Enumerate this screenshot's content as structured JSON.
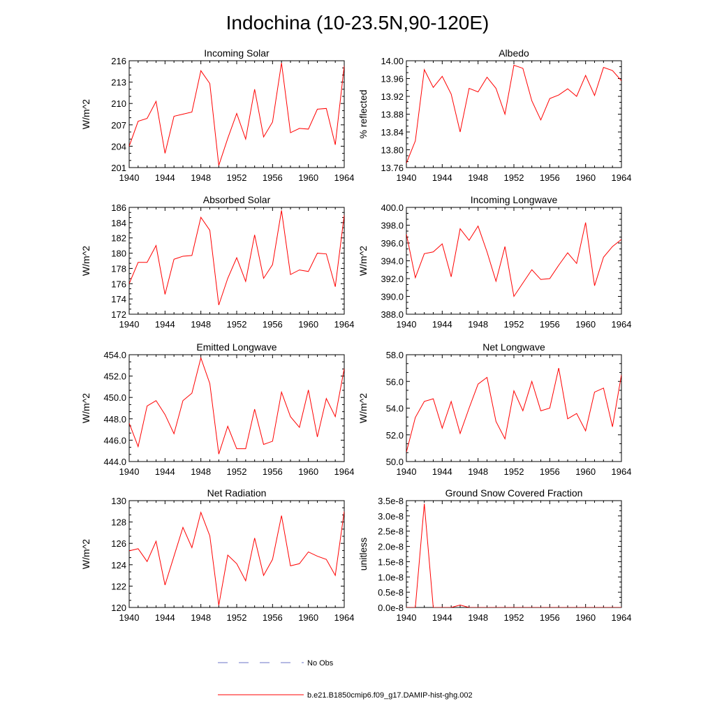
{
  "title": "Indochina (10-23.5N,90-120E)",
  "colors": {
    "model": "#ff0000",
    "obs": "#6b74c7",
    "axis": "#000000"
  },
  "legend": [
    {
      "label": "No Obs",
      "style": "dashed",
      "color": "#6b74c7"
    },
    {
      "label": "b.e21.B1850cmip6.f09_g17.DAMIP-hist-ghg.002",
      "style": "solid",
      "color": "#ff0000"
    }
  ],
  "chart_data": [
    {
      "type": "line",
      "title": "Incoming Solar",
      "ylabel": "W/m^2",
      "x": [
        1940,
        1941,
        1942,
        1943,
        1944,
        1945,
        1946,
        1947,
        1948,
        1949,
        1950,
        1951,
        1952,
        1953,
        1954,
        1955,
        1956,
        1957,
        1958,
        1959,
        1960,
        1961,
        1962,
        1963,
        1964
      ],
      "xlim": [
        1940,
        1964
      ],
      "xticks": [
        "1940",
        "1944",
        "1948",
        "1952",
        "1956",
        "1960",
        "1964"
      ],
      "ylim": [
        201,
        216
      ],
      "yticks": [
        "201",
        "204",
        "207",
        "210",
        "213",
        "216"
      ],
      "series": [
        {
          "values": [
            204.0,
            207.5,
            207.9,
            210.3,
            203.0,
            208.2,
            208.5,
            208.8,
            214.6,
            212.8,
            201.3,
            205.1,
            208.6,
            205.0,
            212.0,
            205.3,
            207.4,
            215.7,
            205.9,
            206.5,
            206.4,
            209.2,
            209.3,
            204.2,
            215.3
          ]
        }
      ]
    },
    {
      "type": "line",
      "title": "Albedo",
      "ylabel": "% reflected",
      "x": [
        1940,
        1941,
        1942,
        1943,
        1944,
        1945,
        1946,
        1947,
        1948,
        1949,
        1950,
        1951,
        1952,
        1953,
        1954,
        1955,
        1956,
        1957,
        1958,
        1959,
        1960,
        1961,
        1962,
        1963,
        1964
      ],
      "xlim": [
        1940,
        1964
      ],
      "xticks": [
        "1940",
        "1944",
        "1948",
        "1952",
        "1956",
        "1960",
        "1964"
      ],
      "ylim": [
        13.76,
        14.0
      ],
      "yticks": [
        "13.76",
        "13.80",
        "13.84",
        "13.88",
        "13.92",
        "13.96",
        "14.00"
      ],
      "series": [
        {
          "values": [
            13.77,
            13.82,
            13.98,
            13.94,
            13.965,
            13.925,
            13.84,
            13.938,
            13.93,
            13.963,
            13.938,
            13.88,
            13.99,
            13.983,
            13.91,
            13.867,
            13.915,
            13.923,
            13.937,
            13.92,
            13.967,
            13.922,
            13.985,
            13.978,
            13.955
          ]
        }
      ]
    },
    {
      "type": "line",
      "title": "Absorbed Solar",
      "ylabel": "W/m^2",
      "x": [
        1940,
        1941,
        1942,
        1943,
        1944,
        1945,
        1946,
        1947,
        1948,
        1949,
        1950,
        1951,
        1952,
        1953,
        1954,
        1955,
        1956,
        1957,
        1958,
        1959,
        1960,
        1961,
        1962,
        1963,
        1964
      ],
      "xlim": [
        1940,
        1964
      ],
      "xticks": [
        "1940",
        "1944",
        "1948",
        "1952",
        "1956",
        "1960",
        "1964"
      ],
      "ylim": [
        172,
        186
      ],
      "yticks": [
        "172",
        "174",
        "176",
        "178",
        "180",
        "182",
        "184",
        "186"
      ],
      "series": [
        {
          "values": [
            176.0,
            178.8,
            178.8,
            181.0,
            174.6,
            179.2,
            179.6,
            179.7,
            184.7,
            183.0,
            173.2,
            176.7,
            179.4,
            176.3,
            182.4,
            176.7,
            178.5,
            185.6,
            177.2,
            177.8,
            177.6,
            180.0,
            179.9,
            175.6,
            185.0
          ]
        }
      ]
    },
    {
      "type": "line",
      "title": "Incoming Longwave",
      "ylabel": "W/m^2",
      "x": [
        1940,
        1941,
        1942,
        1943,
        1944,
        1945,
        1946,
        1947,
        1948,
        1949,
        1950,
        1951,
        1952,
        1953,
        1954,
        1955,
        1956,
        1957,
        1958,
        1959,
        1960,
        1961,
        1962,
        1963,
        1964
      ],
      "xlim": [
        1940,
        1964
      ],
      "xticks": [
        "1940",
        "1944",
        "1948",
        "1952",
        "1956",
        "1960",
        "1964"
      ],
      "ylim": [
        388.0,
        400.0
      ],
      "yticks": [
        "388.0",
        "390.0",
        "392.0",
        "394.0",
        "396.0",
        "398.0",
        "400.0"
      ],
      "series": [
        {
          "values": [
            397.0,
            392.1,
            394.8,
            395.0,
            395.9,
            392.2,
            397.6,
            396.3,
            397.9,
            395.0,
            391.7,
            395.6,
            390.0,
            391.5,
            393.0,
            391.9,
            392.0,
            393.5,
            394.9,
            393.7,
            398.3,
            391.2,
            394.4,
            395.6,
            396.4
          ]
        }
      ]
    },
    {
      "type": "line",
      "title": "Emitted Longwave",
      "ylabel": "W/m^2",
      "x": [
        1940,
        1941,
        1942,
        1943,
        1944,
        1945,
        1946,
        1947,
        1948,
        1949,
        1950,
        1951,
        1952,
        1953,
        1954,
        1955,
        1956,
        1957,
        1958,
        1959,
        1960,
        1961,
        1962,
        1963,
        1964
      ],
      "xlim": [
        1940,
        1964
      ],
      "xticks": [
        "1940",
        "1944",
        "1948",
        "1952",
        "1956",
        "1960",
        "1964"
      ],
      "ylim": [
        444.0,
        454.0
      ],
      "yticks": [
        "444.0",
        "446.0",
        "448.0",
        "450.0",
        "452.0",
        "454.0"
      ],
      "series": [
        {
          "values": [
            447.6,
            445.4,
            449.2,
            449.7,
            448.4,
            446.6,
            449.7,
            450.4,
            453.7,
            451.3,
            444.7,
            447.3,
            445.2,
            445.2,
            448.9,
            445.6,
            445.9,
            450.5,
            448.2,
            447.2,
            450.7,
            446.3,
            449.9,
            448.2,
            452.7
          ]
        }
      ]
    },
    {
      "type": "line",
      "title": "Net Longwave",
      "ylabel": "W/m^2",
      "x": [
        1940,
        1941,
        1942,
        1943,
        1944,
        1945,
        1946,
        1947,
        1948,
        1949,
        1950,
        1951,
        1952,
        1953,
        1954,
        1955,
        1956,
        1957,
        1958,
        1959,
        1960,
        1961,
        1962,
        1963,
        1964
      ],
      "xlim": [
        1940,
        1964
      ],
      "xticks": [
        "1940",
        "1944",
        "1948",
        "1952",
        "1956",
        "1960",
        "1964"
      ],
      "ylim": [
        50.0,
        58.0
      ],
      "yticks": [
        "50.0",
        "52.0",
        "54.0",
        "56.0",
        "58.0"
      ],
      "series": [
        {
          "values": [
            50.7,
            53.3,
            54.5,
            54.7,
            52.5,
            54.5,
            52.1,
            54.0,
            55.8,
            56.3,
            53.0,
            51.7,
            55.3,
            53.8,
            56.0,
            53.8,
            54.0,
            57.0,
            53.2,
            53.6,
            52.3,
            55.2,
            55.5,
            52.6,
            56.5
          ]
        }
      ]
    },
    {
      "type": "line",
      "title": "Net Radiation",
      "ylabel": "W/m^2",
      "x": [
        1940,
        1941,
        1942,
        1943,
        1944,
        1945,
        1946,
        1947,
        1948,
        1949,
        1950,
        1951,
        1952,
        1953,
        1954,
        1955,
        1956,
        1957,
        1958,
        1959,
        1960,
        1961,
        1962,
        1963,
        1964
      ],
      "xlim": [
        1940,
        1964
      ],
      "xticks": [
        "1940",
        "1944",
        "1948",
        "1952",
        "1956",
        "1960",
        "1964"
      ],
      "ylim": [
        120,
        130
      ],
      "yticks": [
        "120",
        "122",
        "124",
        "126",
        "128",
        "130"
      ],
      "series": [
        {
          "values": [
            125.3,
            125.5,
            124.3,
            126.2,
            122.1,
            124.8,
            127.5,
            125.6,
            128.9,
            126.7,
            120.2,
            124.9,
            124.1,
            122.5,
            126.5,
            123.0,
            124.5,
            128.6,
            123.9,
            124.1,
            125.2,
            124.8,
            124.5,
            123.0,
            129.0
          ]
        }
      ]
    },
    {
      "type": "line",
      "title": "Ground Snow Covered Fraction",
      "ylabel": "unitless",
      "x": [
        1940,
        1941,
        1942,
        1943,
        1944,
        1945,
        1946,
        1947,
        1948,
        1949,
        1950,
        1951,
        1952,
        1953,
        1954,
        1955,
        1956,
        1957,
        1958,
        1959,
        1960,
        1961,
        1962,
        1963,
        1964
      ],
      "xlim": [
        1940,
        1964
      ],
      "xticks": [
        "1940",
        "1944",
        "1948",
        "1952",
        "1956",
        "1960",
        "1964"
      ],
      "ylim": [
        0,
        3.5e-08
      ],
      "yticks": [
        "0.0e-8",
        "0.5e-8",
        "1.0e-8",
        "1.5e-8",
        "2.0e-8",
        "2.5e-8",
        "3.0e-8",
        "3.5e-8"
      ],
      "series": [
        {
          "values": [
            0,
            0,
            3.4e-08,
            0,
            0,
            0,
            8e-10,
            0,
            0,
            0,
            0,
            0,
            0,
            0,
            0,
            0,
            0,
            0,
            0,
            0,
            0,
            0,
            0,
            0,
            0
          ]
        }
      ]
    }
  ]
}
